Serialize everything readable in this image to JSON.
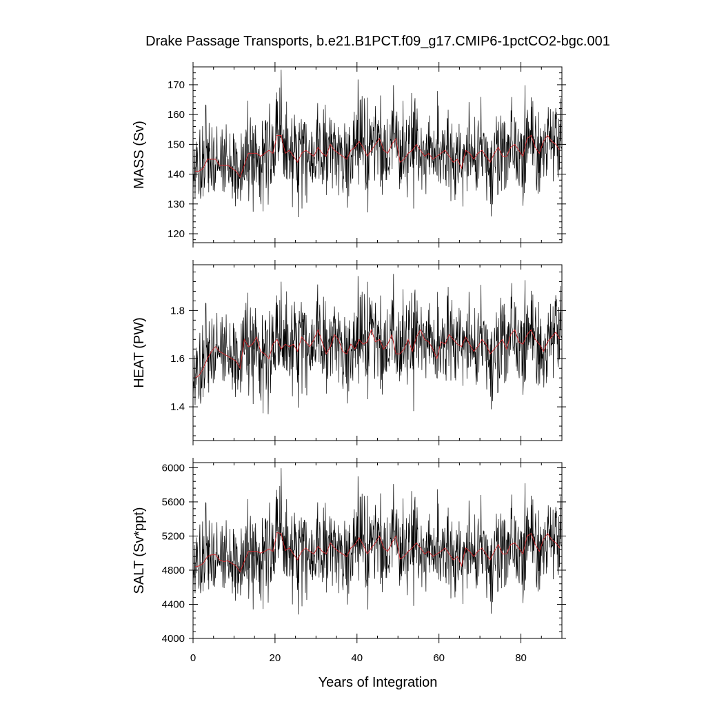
{
  "figure": {
    "title": "Drake Passage Transports, b.e21.B1PCT.f09_g17.CMIP6-1pctCO2-bgc.001",
    "xlabel": "Years of Integration"
  },
  "chart_data": [
    {
      "type": "line",
      "ylabel": "MASS (Sv)",
      "xlim": [
        0,
        90
      ],
      "ylim": [
        117,
        176
      ],
      "x_ticks": [
        0,
        20,
        40,
        60,
        80
      ],
      "y_ticks": [
        120,
        130,
        140,
        150,
        160,
        170
      ],
      "y_tick_labels": [
        "120",
        "130",
        "140",
        "150",
        "160",
        "170"
      ],
      "series": [
        {
          "style": "monthly",
          "color": "#000000",
          "generated_from": {
            "mean": 146,
            "std": 7.5,
            "min": 117,
            "max": 176,
            "months": 1080
          }
        },
        {
          "style": "annual_mean",
          "color": "#d8262b",
          "x": [
            0,
            1,
            2,
            3,
            4,
            5,
            6,
            7,
            8,
            9,
            10,
            11,
            12,
            13,
            14,
            15,
            16,
            17,
            18,
            19,
            20,
            21,
            22,
            23,
            24,
            25,
            26,
            27,
            28,
            29,
            30,
            31,
            32,
            33,
            34,
            35,
            36,
            37,
            38,
            39,
            40,
            41,
            42,
            43,
            44,
            45,
            46,
            47,
            48,
            49,
            50,
            51,
            52,
            53,
            54,
            55,
            56,
            57,
            58,
            59,
            60,
            61,
            62,
            63,
            64,
            65,
            66,
            67,
            68,
            69,
            70,
            71,
            72,
            73,
            74,
            75,
            76,
            77,
            78,
            79,
            80,
            81,
            82,
            83,
            84,
            85,
            86,
            87,
            88,
            89
          ],
          "y": [
            141,
            141,
            142,
            145,
            145,
            145,
            143,
            143,
            143,
            142,
            141,
            139,
            143,
            147,
            147,
            147,
            146,
            147,
            148,
            147,
            153,
            153,
            147,
            148,
            146,
            144,
            147,
            148,
            147,
            146,
            149,
            147,
            146,
            150,
            148,
            147,
            146,
            145,
            148,
            149,
            151,
            149,
            146,
            148,
            150,
            152,
            148,
            147,
            150,
            152,
            144,
            145,
            147,
            148,
            150,
            148,
            146,
            147,
            145,
            146,
            147,
            148,
            146,
            144,
            145,
            142,
            148,
            147,
            145,
            147,
            148,
            146,
            144,
            147,
            149,
            146,
            146,
            149,
            150,
            148,
            146,
            152,
            153,
            149,
            147,
            151,
            153,
            151,
            150,
            148
          ]
        }
      ]
    },
    {
      "type": "line",
      "ylabel": "HEAT (PW)",
      "xlim": [
        0,
        90
      ],
      "ylim": [
        1.26,
        1.99
      ],
      "x_ticks": [
        0,
        20,
        40,
        60,
        80
      ],
      "y_ticks": [
        1.4,
        1.6,
        1.8
      ],
      "y_tick_labels": [
        "1.4",
        "1.6",
        "1.8"
      ],
      "series": [
        {
          "style": "monthly",
          "color": "#000000",
          "generated_from": {
            "mean": 1.63,
            "std": 0.095,
            "min": 1.26,
            "max": 1.98,
            "months": 1080
          }
        },
        {
          "style": "annual_mean",
          "color": "#d8262b",
          "x": [
            0,
            1,
            2,
            3,
            4,
            5,
            6,
            7,
            8,
            9,
            10,
            11,
            12,
            13,
            14,
            15,
            16,
            17,
            18,
            19,
            20,
            21,
            22,
            23,
            24,
            25,
            26,
            27,
            28,
            29,
            30,
            31,
            32,
            33,
            34,
            35,
            36,
            37,
            38,
            39,
            40,
            41,
            42,
            43,
            44,
            45,
            46,
            47,
            48,
            49,
            50,
            51,
            52,
            53,
            54,
            55,
            56,
            57,
            58,
            59,
            60,
            61,
            62,
            63,
            64,
            65,
            66,
            67,
            68,
            69,
            70,
            71,
            72,
            73,
            74,
            75,
            76,
            77,
            78,
            79,
            80,
            81,
            82,
            83,
            84,
            85,
            86,
            87,
            88,
            89
          ],
          "y": [
            1.52,
            1.53,
            1.56,
            1.6,
            1.63,
            1.65,
            1.63,
            1.62,
            1.61,
            1.6,
            1.59,
            1.56,
            1.68,
            1.65,
            1.66,
            1.69,
            1.63,
            1.62,
            1.6,
            1.66,
            1.68,
            1.64,
            1.66,
            1.65,
            1.66,
            1.63,
            1.69,
            1.67,
            1.65,
            1.68,
            1.72,
            1.67,
            1.62,
            1.65,
            1.7,
            1.68,
            1.63,
            1.62,
            1.66,
            1.64,
            1.68,
            1.66,
            1.67,
            1.72,
            1.67,
            1.68,
            1.64,
            1.66,
            1.7,
            1.62,
            1.62,
            1.64,
            1.68,
            1.63,
            1.69,
            1.72,
            1.68,
            1.67,
            1.64,
            1.6,
            1.67,
            1.66,
            1.7,
            1.68,
            1.66,
            1.65,
            1.69,
            1.66,
            1.63,
            1.65,
            1.68,
            1.66,
            1.62,
            1.64,
            1.66,
            1.68,
            1.64,
            1.7,
            1.72,
            1.67,
            1.66,
            1.7,
            1.72,
            1.68,
            1.66,
            1.63,
            1.67,
            1.69,
            1.71,
            1.68
          ]
        }
      ]
    },
    {
      "type": "line",
      "ylabel": "SALT (Sv*ppt)",
      "xlim": [
        0,
        90
      ],
      "ylim": [
        4000,
        6060
      ],
      "x_ticks": [
        0,
        20,
        40,
        60,
        80
      ],
      "y_ticks": [
        4000,
        4400,
        4800,
        5200,
        5600,
        6000
      ],
      "y_tick_labels": [
        "4000",
        "4400",
        "4800",
        "5200",
        "5600",
        "6000"
      ],
      "series": [
        {
          "style": "monthly",
          "color": "#000000",
          "generated_from": {
            "mean": 5010,
            "std": 260,
            "min": 4000,
            "max": 6050,
            "months": 1080
          }
        },
        {
          "style": "annual_mean",
          "color": "#d8262b",
          "x": [
            0,
            1,
            2,
            3,
            4,
            5,
            6,
            7,
            8,
            9,
            10,
            11,
            12,
            13,
            14,
            15,
            16,
            17,
            18,
            19,
            20,
            21,
            22,
            23,
            24,
            25,
            26,
            27,
            28,
            29,
            30,
            31,
            32,
            33,
            34,
            35,
            36,
            37,
            38,
            39,
            40,
            41,
            42,
            43,
            44,
            45,
            46,
            47,
            48,
            49,
            50,
            51,
            52,
            53,
            54,
            55,
            56,
            57,
            58,
            59,
            60,
            61,
            62,
            63,
            64,
            65,
            66,
            67,
            68,
            69,
            70,
            71,
            72,
            73,
            74,
            75,
            76,
            77,
            78,
            79,
            80,
            81,
            82,
            83,
            84,
            85,
            86,
            87,
            88,
            89
          ],
          "y": [
            4840,
            4850,
            4880,
            4960,
            4980,
            4980,
            4920,
            4900,
            4910,
            4880,
            4850,
            4780,
            4900,
            5020,
            5020,
            5020,
            5000,
            5020,
            5050,
            5020,
            5240,
            5230,
            5030,
            5060,
            4990,
            4920,
            5020,
            5060,
            5020,
            4990,
            5080,
            5020,
            4990,
            5120,
            5060,
            5020,
            4990,
            4960,
            5060,
            5100,
            5180,
            5100,
            4990,
            5060,
            5120,
            5200,
            5060,
            5020,
            5120,
            5200,
            4930,
            4960,
            5020,
            5060,
            5120,
            5060,
            4990,
            5020,
            4960,
            4990,
            5020,
            5060,
            4990,
            4920,
            4960,
            4850,
            5060,
            5020,
            4960,
            5020,
            5060,
            4990,
            4920,
            5020,
            5100,
            4990,
            4990,
            5100,
            5120,
            5060,
            4990,
            5200,
            5230,
            5100,
            5020,
            5160,
            5230,
            5160,
            5120,
            5060
          ]
        }
      ]
    }
  ]
}
